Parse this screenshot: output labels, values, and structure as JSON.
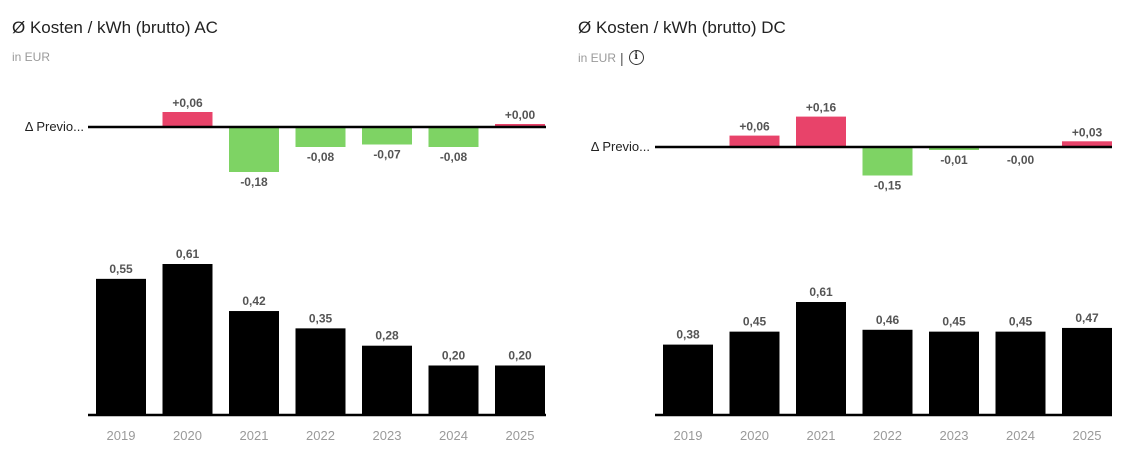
{
  "chart_data": [
    {
      "type": "bar",
      "title": "Ø Kosten / kWh (brutto) AC",
      "subtitle": "in EUR",
      "categories": [
        "2019",
        "2020",
        "2021",
        "2022",
        "2023",
        "2024",
        "2025"
      ],
      "values": [
        0.55,
        0.61,
        0.42,
        0.35,
        0.28,
        0.2,
        0.2
      ],
      "value_labels": [
        "0,55",
        "0,61",
        "0,42",
        "0,35",
        "0,28",
        "0,20",
        "0,20"
      ],
      "ylim": [
        0,
        0.61
      ],
      "bar_color": "#000000",
      "delta": {
        "axis_label": "Δ Previo...",
        "values": [
          null,
          0.06,
          -0.18,
          -0.08,
          -0.07,
          -0.08,
          0.0
        ],
        "labels": [
          "",
          "+0,06",
          "-0,18",
          "-0,08",
          "-0,07",
          "-0,08",
          "+0,00"
        ],
        "positive_color": "#e8436a",
        "negative_color": "#7ed364"
      }
    },
    {
      "type": "bar",
      "title": "Ø Kosten / kWh (brutto) DC",
      "subtitle": "in EUR",
      "info_icon": "info-icon",
      "categories": [
        "2019",
        "2020",
        "2021",
        "2022",
        "2023",
        "2024",
        "2025"
      ],
      "values": [
        0.38,
        0.45,
        0.61,
        0.46,
        0.45,
        0.45,
        0.47
      ],
      "value_labels": [
        "0,38",
        "0,45",
        "0,61",
        "0,46",
        "0,45",
        "0,45",
        "0,47"
      ],
      "ylim": [
        0,
        0.61
      ],
      "bar_color": "#000000",
      "delta": {
        "axis_label": "Δ Previo...",
        "values": [
          null,
          0.06,
          0.16,
          -0.15,
          -0.01,
          -0.0,
          0.03
        ],
        "labels": [
          "",
          "+0,06",
          "+0,16",
          "-0,15",
          "-0,01",
          "-0,00",
          "+0,03"
        ],
        "positive_color": "#e8436a",
        "negative_color": "#7ed364"
      }
    }
  ]
}
